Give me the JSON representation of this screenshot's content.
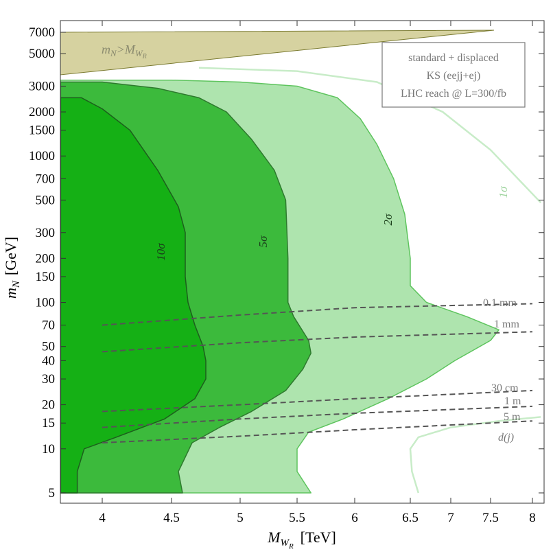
{
  "chart_data": {
    "type": "area",
    "xlabel": "M_W_R [TeV]",
    "ylabel": "m_N [GeV]",
    "xlim": [
      3.7,
      8.1
    ],
    "ylim": [
      4.3,
      9000
    ],
    "yscale": "log",
    "xscale": "reciprocal-like (ticks unevenly spaced)",
    "x_ticks": [
      "4",
      "4.5",
      "5",
      "5.5",
      "6",
      "6.5",
      "7",
      "7.5",
      "8"
    ],
    "x_tick_values": [
      4,
      4.5,
      5,
      5.5,
      6,
      6.5,
      7,
      7.5,
      8
    ],
    "y_ticks": [
      "5",
      "10",
      "15",
      "20",
      "30",
      "40",
      "50",
      "70",
      "100",
      "150",
      "200",
      "300",
      "500",
      "700",
      "1000",
      "1500",
      "2000",
      "3000",
      "5000",
      "7000"
    ],
    "y_tick_values": [
      5,
      10,
      15,
      20,
      30,
      40,
      50,
      70,
      100,
      150,
      200,
      300,
      500,
      700,
      1000,
      1500,
      2000,
      3000,
      5000,
      7000
    ],
    "legend_box": [
      "standard + displaced",
      "KS (eejj+ej)",
      "LHC reach @ L=300/fb"
    ],
    "excluded_region_label": "m_N>M_W_R",
    "excluded_region_color": "#d6d2a0",
    "series": [
      {
        "name": "10σ",
        "color": "#15b015",
        "points": [
          [
            3.7,
            5
          ],
          [
            3.7,
            2500
          ],
          [
            3.85,
            2500
          ],
          [
            4.0,
            2100
          ],
          [
            4.2,
            1500
          ],
          [
            4.4,
            800
          ],
          [
            4.55,
            450
          ],
          [
            4.6,
            300
          ],
          [
            4.6,
            150
          ],
          [
            4.62,
            100
          ],
          [
            4.67,
            70
          ],
          [
            4.73,
            50
          ],
          [
            4.75,
            40
          ],
          [
            4.75,
            30
          ],
          [
            4.67,
            22
          ],
          [
            4.45,
            16
          ],
          [
            4.1,
            12
          ],
          [
            3.87,
            10
          ],
          [
            3.82,
            7
          ],
          [
            3.82,
            5
          ]
        ]
      },
      {
        "name": "5σ",
        "color": "#3cba3c",
        "points": [
          [
            3.7,
            5
          ],
          [
            3.7,
            3200
          ],
          [
            4.0,
            3200
          ],
          [
            4.4,
            2900
          ],
          [
            4.7,
            2500
          ],
          [
            4.9,
            2000
          ],
          [
            5.1,
            1300
          ],
          [
            5.3,
            800
          ],
          [
            5.4,
            500
          ],
          [
            5.42,
            200
          ],
          [
            5.42,
            100
          ],
          [
            5.47,
            80
          ],
          [
            5.6,
            55
          ],
          [
            5.62,
            45
          ],
          [
            5.55,
            35
          ],
          [
            5.4,
            25
          ],
          [
            5.1,
            18
          ],
          [
            4.85,
            14
          ],
          [
            4.65,
            11
          ],
          [
            4.55,
            7
          ],
          [
            4.58,
            5
          ]
        ]
      },
      {
        "name": "2σ",
        "color": "#aee4ae",
        "points": [
          [
            3.7,
            5
          ],
          [
            3.7,
            3300
          ],
          [
            4.5,
            3300
          ],
          [
            5.0,
            3200
          ],
          [
            5.5,
            3000
          ],
          [
            5.85,
            2500
          ],
          [
            6.05,
            1800
          ],
          [
            6.2,
            1200
          ],
          [
            6.35,
            700
          ],
          [
            6.45,
            400
          ],
          [
            6.5,
            200
          ],
          [
            6.5,
            130
          ],
          [
            6.7,
            100
          ],
          [
            7.2,
            80
          ],
          [
            7.6,
            65
          ],
          [
            7.5,
            55
          ],
          [
            7.05,
            40
          ],
          [
            6.7,
            30
          ],
          [
            6.3,
            22
          ],
          [
            5.9,
            16
          ],
          [
            5.6,
            13
          ],
          [
            5.5,
            10
          ],
          [
            5.5,
            7
          ],
          [
            5.62,
            5
          ]
        ]
      },
      {
        "name": "1σ",
        "color": "#c8ecc8",
        "upper_curve": [
          [
            4.7,
            4000
          ],
          [
            5.5,
            3800
          ],
          [
            6.2,
            3200
          ],
          [
            6.9,
            2000
          ],
          [
            7.5,
            1100
          ],
          [
            8.1,
            480
          ]
        ],
        "lower_curve": [
          [
            6.6,
            5
          ],
          [
            6.52,
            7
          ],
          [
            6.5,
            10
          ],
          [
            6.6,
            12
          ],
          [
            7.0,
            14
          ],
          [
            7.6,
            15.5
          ],
          [
            8.1,
            16.5
          ]
        ]
      }
    ],
    "series_labels": [
      "10σ",
      "5σ",
      "2σ",
      "1σ"
    ],
    "decay_length_lines": [
      {
        "name": "0.1 mm",
        "points": [
          [
            4.0,
            70
          ],
          [
            5.0,
            82
          ],
          [
            6.0,
            92
          ],
          [
            8.0,
            98
          ]
        ]
      },
      {
        "name": "1 mm",
        "points": [
          [
            4.0,
            46
          ],
          [
            5.0,
            53
          ],
          [
            6.0,
            58
          ],
          [
            8.0,
            63
          ]
        ]
      },
      {
        "name": "30 cm",
        "points": [
          [
            4.0,
            18
          ],
          [
            5.0,
            20
          ],
          [
            6.0,
            22
          ],
          [
            8.0,
            25
          ]
        ]
      },
      {
        "name": "1 m",
        "points": [
          [
            4.0,
            14
          ],
          [
            5.0,
            16
          ],
          [
            6.0,
            17.5
          ],
          [
            8.0,
            19.5
          ]
        ]
      },
      {
        "name": "5 m",
        "points": [
          [
            4.0,
            11
          ],
          [
            5.0,
            12.2
          ],
          [
            6.0,
            13.5
          ],
          [
            8.0,
            15.5
          ]
        ]
      }
    ],
    "decay_length_axis_label": "d(j)"
  }
}
